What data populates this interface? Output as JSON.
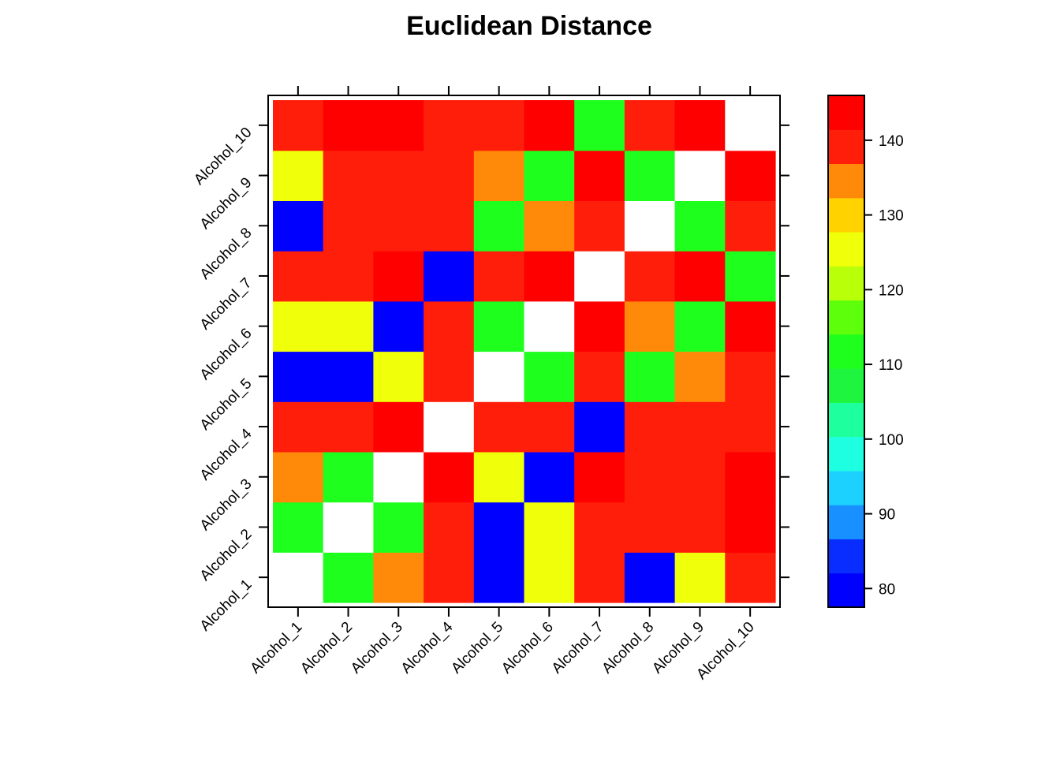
{
  "chart_data": {
    "type": "heatmap",
    "title": "Euclidean Distance",
    "xlabel": "",
    "ylabel": "",
    "x_labels": [
      "Alcohol_1",
      "Alcohol_2",
      "Alcohol_3",
      "Alcohol_4",
      "Alcohol_5",
      "Alcohol_6",
      "Alcohol_7",
      "Alcohol_8",
      "Alcohol_9",
      "Alcohol_10"
    ],
    "y_labels": [
      "Alcohol_1",
      "Alcohol_2",
      "Alcohol_3",
      "Alcohol_4",
      "Alcohol_5",
      "Alcohol_6",
      "Alcohol_7",
      "Alcohol_8",
      "Alcohol_9",
      "Alcohol_10"
    ],
    "matrix": [
      [
        null,
        112,
        136,
        141,
        79,
        127,
        141,
        79,
        127,
        141
      ],
      [
        112,
        null,
        112,
        141,
        79,
        127,
        141,
        141,
        141,
        144
      ],
      [
        136,
        112,
        null,
        144,
        127,
        79,
        144,
        141,
        141,
        144
      ],
      [
        141,
        141,
        144,
        null,
        141,
        141,
        79,
        141,
        141,
        141
      ],
      [
        79,
        79,
        127,
        141,
        null,
        112,
        141,
        112,
        136,
        141
      ],
      [
        127,
        127,
        79,
        141,
        112,
        null,
        144,
        136,
        112,
        144
      ],
      [
        141,
        141,
        144,
        79,
        141,
        144,
        null,
        141,
        144,
        112
      ],
      [
        79,
        141,
        141,
        141,
        112,
        136,
        141,
        null,
        112,
        141
      ],
      [
        127,
        141,
        141,
        141,
        136,
        112,
        144,
        112,
        null,
        144
      ],
      [
        141,
        144,
        144,
        141,
        141,
        144,
        112,
        141,
        144,
        null
      ]
    ],
    "colorbar": {
      "range": [
        77.5,
        146
      ],
      "ticks": [
        80,
        90,
        100,
        110,
        120,
        130,
        140
      ],
      "colors": [
        "#0000ff",
        "#0a2dff",
        "#1890ff",
        "#1dd1ff",
        "#1effe2",
        "#1eff9e",
        "#1ef53e",
        "#1eff1e",
        "#5dff0a",
        "#baff0a",
        "#f0ff0a",
        "#ffd200",
        "#ff8a0a",
        "#ff1e0a",
        "#ff0000"
      ]
    }
  }
}
